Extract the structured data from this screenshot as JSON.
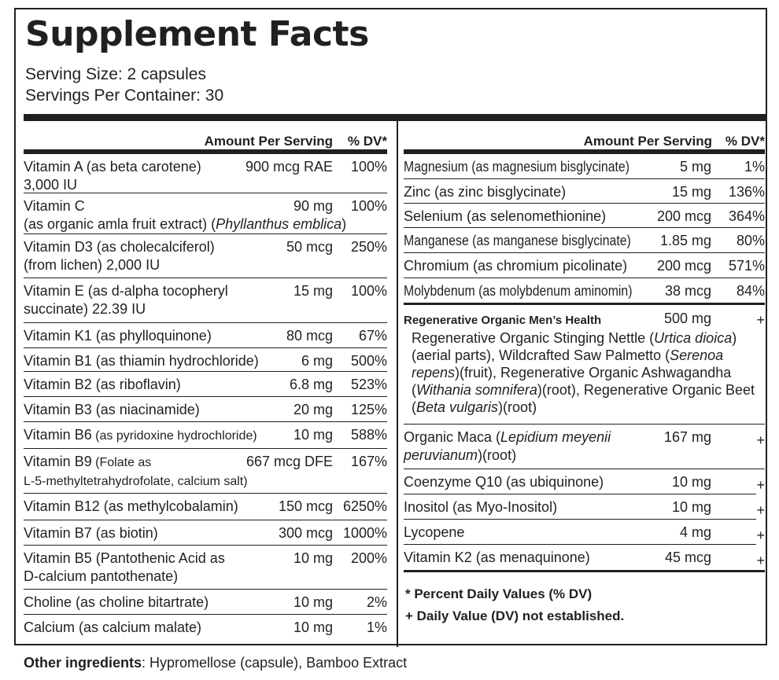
{
  "title": "Supplement Facts",
  "serving_size": "Serving Size: 2 capsules",
  "servings_per_container": "Servings Per Container: 30",
  "header": {
    "amount": "Amount Per Serving",
    "dv": "% DV*"
  },
  "left": [
    {
      "name": "Vitamin A (as beta carotene)",
      "name2": "3,000 IU",
      "amount": "900 mcg RAE",
      "dv": "100%"
    },
    {
      "name": "Vitamin C",
      "name2a": "(as organic amla fruit extract) (",
      "name2i": "Phyllanthus emblica",
      "name2b": ")",
      "amount": "90 mg",
      "dv": "100%"
    },
    {
      "name": "Vitamin D3 (as cholecalciferol)",
      "name2": "(from lichen) 2,000 IU",
      "amount": "50 mcg",
      "dv": "250%"
    },
    {
      "name": "Vitamin E (as d-alpha tocopheryl",
      "name2": "succinate) 22.39 IU",
      "amount": "15 mg",
      "dv": "100%"
    },
    {
      "name": "Vitamin K1 (as phylloquinone)",
      "amount": "80 mcg",
      "dv": "67%"
    },
    {
      "name": "Vitamin B1 (as thiamin hydrochloride)",
      "amount": "6 mg",
      "dv": "500%"
    },
    {
      "name": "Vitamin B2 (as riboflavin)",
      "amount": "6.8 mg",
      "dv": "523%"
    },
    {
      "name": "Vitamin B3 (as niacinamide)",
      "amount": "20 mg",
      "dv": "125%"
    },
    {
      "name": "Vitamin B6",
      "name_small": " (as pyridoxine hydrochloride)",
      "amount": "10 mg",
      "dv": "588%"
    },
    {
      "name": "Vitamin B9",
      "name_small": " (Folate as",
      "name2": "L-5-methyltetrahydrofolate, calcium salt)",
      "amount": "667 mcg DFE",
      "dv": "167%"
    },
    {
      "name": "Vitamin B12 (as methylcobalamin)",
      "amount": "150 mcg",
      "dv": "6250%"
    },
    {
      "name": "Vitamin B7 (as biotin)",
      "amount": "300 mcg",
      "dv": "1000%"
    },
    {
      "name": "Vitamin B5 (Pantothenic Acid as",
      "name2": "D-calcium pantothenate)",
      "amount": "10 mg",
      "dv": "200%"
    },
    {
      "name": "Choline (as choline bitartrate)",
      "amount": "10 mg",
      "dv": "2%"
    },
    {
      "name": "Calcium (as calcium malate)",
      "amount": "10 mg",
      "dv": "1%"
    }
  ],
  "right": [
    {
      "name": "Magnesium (as magnesium bisglycinate)",
      "amount": "5 mg",
      "dv": "1%"
    },
    {
      "name": "Zinc (as zinc bisglycinate)",
      "amount": "15 mg",
      "dv": "136%"
    },
    {
      "name": "Selenium (as selenomethionine)",
      "amount": "200 mcg",
      "dv": "364%"
    },
    {
      "name": "Manganese (as manganese bisglycinate)",
      "amount": "1.85 mg",
      "dv": "80%"
    },
    {
      "name": "Chromium (as chromium picolinate)",
      "amount": "200 mcg",
      "dv": "571%"
    },
    {
      "name": "Molybdenum (as molybdenum aminomin)",
      "amount": "38 mcg",
      "dv": "84%"
    }
  ],
  "blend": {
    "title": "Regenerative Organic Men’s Health",
    "amount": "500 mg",
    "dv": "+",
    "p1": "Regenerative Organic Stinging Nettle (",
    "i1": "Urtica dioica",
    "p2": ")(aerial parts), Wildcrafted Saw Palmetto (",
    "i2": "Serenoa repens",
    "p3": ")(fruit), Regenerative Organic Ashwagandha (",
    "i3": "Withania somnifera",
    "p4": ")(root), Regenerative Organic Beet (",
    "i4": "Beta vulgaris",
    "p5": ")(root)"
  },
  "maca": {
    "a": "Organic Maca (",
    "i": "Lepidium meyenii peruvianum",
    "b": ")(root)",
    "amount": "167 mg",
    "dv": "+"
  },
  "right2": [
    {
      "name": "Coenzyme Q10 (as ubiquinone)",
      "amount": "10 mg",
      "dv": "+"
    },
    {
      "name": "Inositol (as Myo-Inositol)",
      "amount": "10 mg",
      "dv": "+"
    },
    {
      "name": "Lycopene",
      "amount": "4 mg",
      "dv": "+"
    },
    {
      "name": "Vitamin K2 (as menaquinone)",
      "amount": "45 mcg",
      "dv": "+"
    }
  ],
  "footnote1": "* Percent Daily Values (% DV)",
  "footnote2": "+ Daily Value (DV) not established.",
  "other_label": "Other ingredients",
  "other_text": ": Hypromellose (capsule), Bamboo Extract"
}
